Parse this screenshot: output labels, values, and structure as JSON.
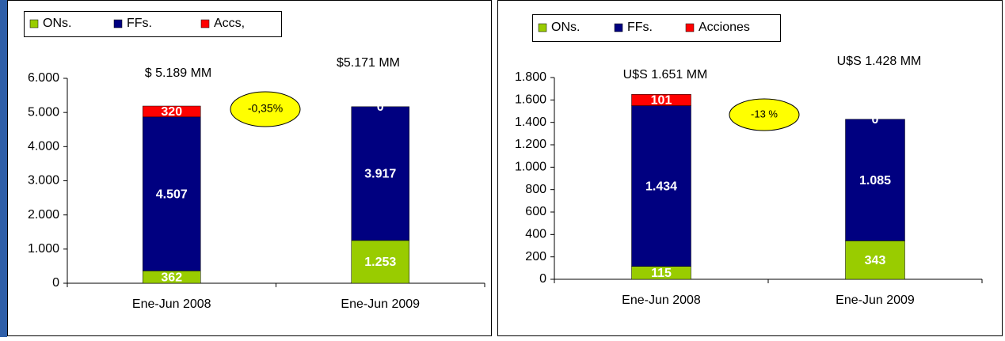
{
  "chart_data": [
    {
      "type": "bar",
      "stacked": true,
      "categories": [
        "Ene-Jun 2008",
        "Ene-Jun 2009"
      ],
      "series": [
        {
          "name": "ONs.",
          "color": "#99cc00",
          "values": [
            362,
            1253
          ],
          "value_labels": [
            "362",
            "1.253"
          ]
        },
        {
          "name": "FFs.",
          "color": "#000080",
          "values": [
            4507,
            3917
          ],
          "value_labels": [
            "4.507",
            "3.917"
          ]
        },
        {
          "name": "Accs,",
          "color": "#ff0000",
          "values": [
            320,
            0
          ],
          "value_labels": [
            "320",
            "0"
          ]
        }
      ],
      "ylim": [
        0,
        6000
      ],
      "yticks": [
        0,
        {
          "value": 1000,
          "label": "1.000"
        },
        {
          "value": 2000,
          "label": "2.000"
        },
        {
          "value": 3000,
          "label": "3.000"
        },
        {
          "value": 4000,
          "label": "4.000"
        },
        {
          "value": 5000,
          "label": "5.000"
        },
        {
          "value": 6000,
          "label": "6.000"
        }
      ],
      "annotations": [
        "$ 5.189 MM",
        "$5.171 MM",
        "-0,35%"
      ],
      "legend": "top-left"
    },
    {
      "type": "bar",
      "stacked": true,
      "categories": [
        "Ene-Jun 2008",
        "Ene-Jun 2009"
      ],
      "series": [
        {
          "name": "ONs.",
          "color": "#99cc00",
          "values": [
            115,
            343
          ],
          "value_labels": [
            "115",
            "343"
          ]
        },
        {
          "name": "FFs.",
          "color": "#000080",
          "values": [
            1434,
            1085
          ],
          "value_labels": [
            "1.434",
            "1.085"
          ]
        },
        {
          "name": "Acciones",
          "color": "#ff0000",
          "values": [
            101,
            0
          ],
          "value_labels": [
            "101",
            "0"
          ]
        }
      ],
      "ylim": [
        0,
        1800
      ],
      "yticks": [
        0,
        200,
        400,
        600,
        800,
        {
          "value": 1000,
          "label": "1.000"
        },
        {
          "value": 1200,
          "label": "1.200"
        },
        {
          "value": 1400,
          "label": "1.400"
        },
        {
          "value": 1600,
          "label": "1.600"
        },
        {
          "value": 1800,
          "label": "1.800"
        }
      ],
      "annotations": [
        "U$S 1.651 MM",
        "U$S 1.428 MM",
        "-13 %"
      ],
      "legend": "top-left"
    }
  ]
}
